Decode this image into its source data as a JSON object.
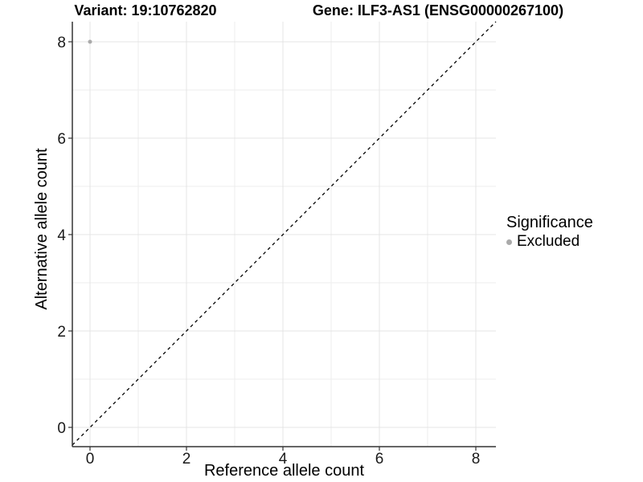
{
  "chart_data": {
    "type": "scatter",
    "titles": {
      "left": "Variant: 19:10762820",
      "right": "Gene: ILF3-AS1 (ENSG00000267100)"
    },
    "xlabel": "Reference allele count",
    "ylabel": "Alternative allele count",
    "xlim": [
      -0.4,
      8.4
    ],
    "ylim": [
      -0.4,
      8.4
    ],
    "xticks": [
      0,
      2,
      4,
      6,
      8
    ],
    "yticks": [
      0,
      2,
      4,
      6,
      8
    ],
    "minor_gridlines_x": [
      1,
      3,
      5,
      7
    ],
    "minor_gridlines_y": [
      1,
      3,
      5,
      7
    ],
    "grid": "major+minor",
    "identity_line": {
      "slope": 1,
      "intercept": 0,
      "linetype": "dashed",
      "color": "#000000"
    },
    "series": [
      {
        "name": "Excluded",
        "color": "#aaaaaa",
        "points": [
          {
            "x": 0,
            "y": 8
          }
        ]
      }
    ],
    "legend": {
      "title": "Significance",
      "position": "right",
      "entries": [
        {
          "label": "Excluded",
          "color": "#aaaaaa",
          "marker": "circle"
        }
      ]
    },
    "colors": {
      "background": "#ffffff",
      "grid_major": "#e4e4e4",
      "grid_minor": "#eeeeee",
      "axis_line": "#333333",
      "tick_mark": "#333333",
      "tick_text": "#1a1a1a"
    }
  }
}
